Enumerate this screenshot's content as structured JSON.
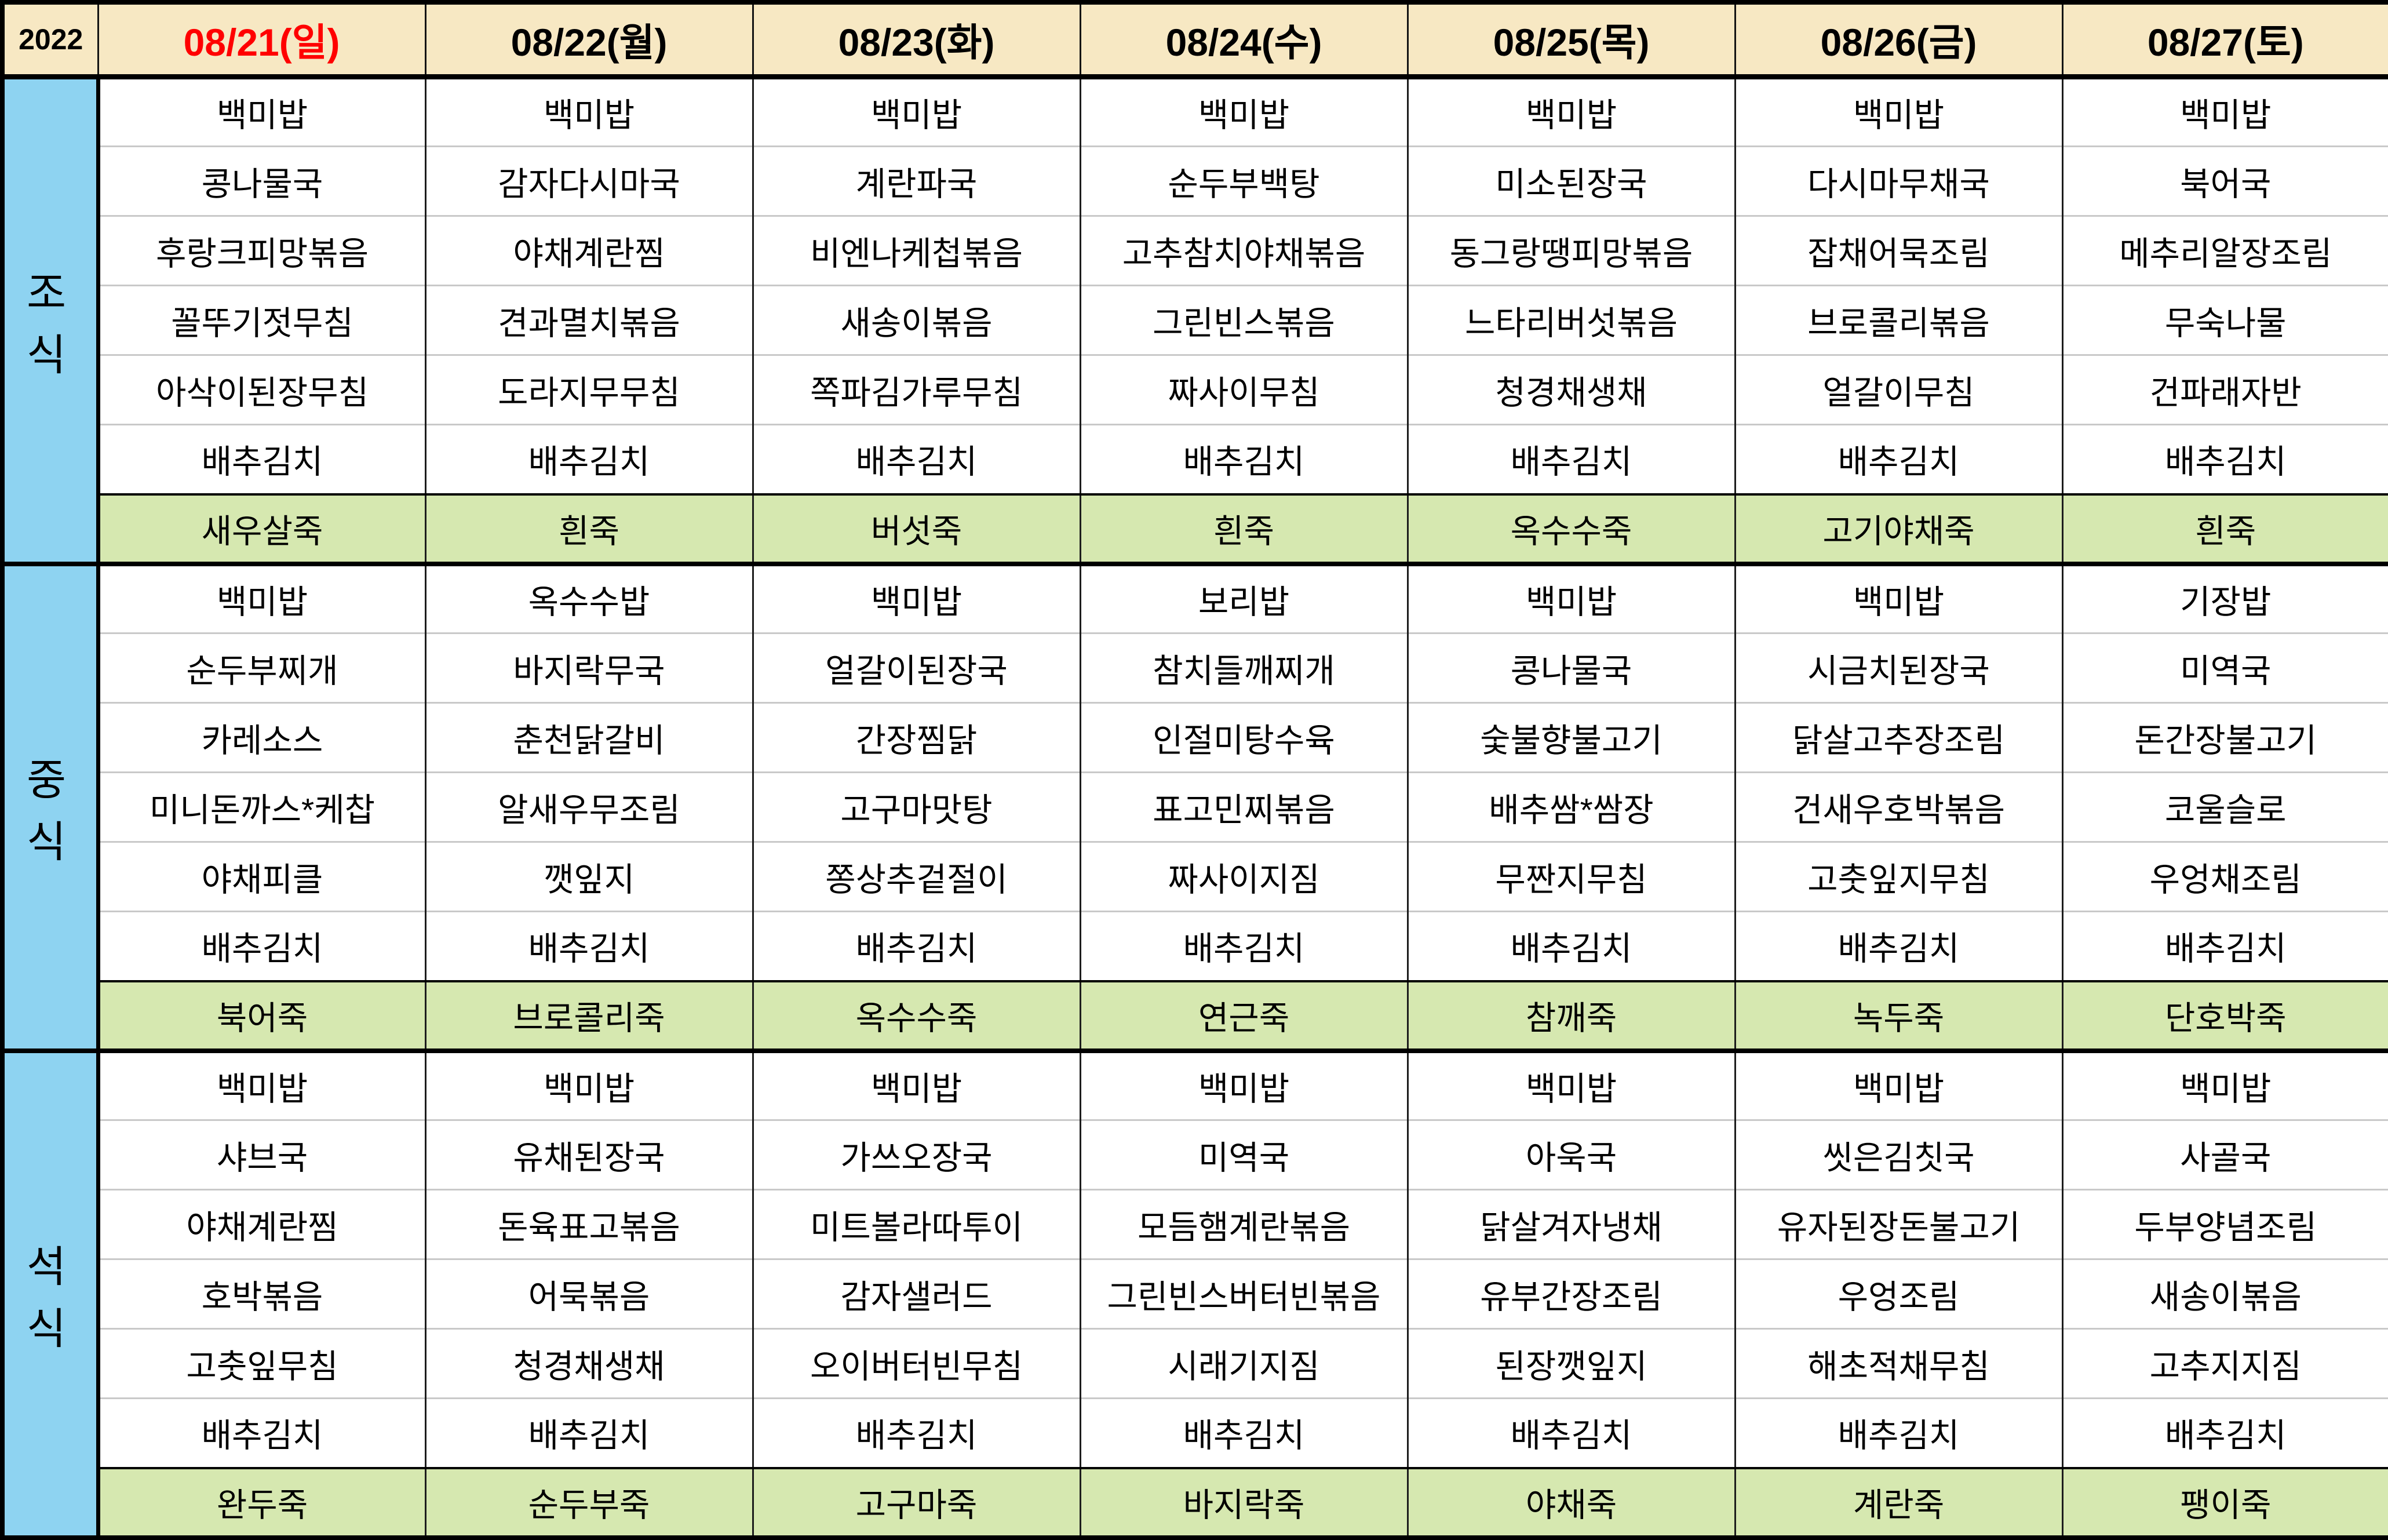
{
  "year": "2022",
  "colors": {
    "header_bg": "#F7E8C3",
    "meal_bg": "#8ED3F1",
    "porridge_bg": "#D6E8B0",
    "holiday_text": "#FF0000",
    "grid_light": "#C9C9C9"
  },
  "header": {
    "days": [
      {
        "label": "08/21(일)",
        "red": true
      },
      {
        "label": "08/22(월)",
        "red": false
      },
      {
        "label": "08/23(화)",
        "red": false
      },
      {
        "label": "08/24(수)",
        "red": false
      },
      {
        "label": "08/25(목)",
        "red": false
      },
      {
        "label": "08/26(금)",
        "red": false
      },
      {
        "label": "08/27(토)",
        "red": false
      }
    ]
  },
  "sections": [
    {
      "label": "조식",
      "menus": [
        [
          "백미밥",
          "콩나물국",
          "후랑크피망볶음",
          "꼴뚜기젓무침",
          "아삭이된장무침",
          "배추김치"
        ],
        [
          "백미밥",
          "감자다시마국",
          "야채계란찜",
          "견과멸치볶음",
          "도라지무무침",
          "배추김치"
        ],
        [
          "백미밥",
          "계란파국",
          "비엔나케첩볶음",
          "새송이볶음",
          "쪽파김가루무침",
          "배추김치"
        ],
        [
          "백미밥",
          "순두부백탕",
          "고추참치야채볶음",
          "그린빈스볶음",
          "짜사이무침",
          "배추김치"
        ],
        [
          "백미밥",
          "미소된장국",
          "동그랑땡피망볶음",
          "느타리버섯볶음",
          "청경채생채",
          "배추김치"
        ],
        [
          "백미밥",
          "다시마무채국",
          "잡채어묵조림",
          "브로콜리볶음",
          "얼갈이무침",
          "배추김치"
        ],
        [
          "백미밥",
          "북어국",
          "메추리알장조림",
          "무숙나물",
          "건파래자반",
          "배추김치"
        ]
      ],
      "porridge": [
        "새우살죽",
        "흰죽",
        "버섯죽",
        "흰죽",
        "옥수수죽",
        "고기야채죽",
        "흰죽"
      ]
    },
    {
      "label": "중식",
      "menus": [
        [
          "백미밥",
          "순두부찌개",
          "카레소스",
          "미니돈까스*케찹",
          "야채피클",
          "배추김치"
        ],
        [
          "옥수수밥",
          "바지락무국",
          "춘천닭갈비",
          "알새우무조림",
          "깻잎지",
          "배추김치"
        ],
        [
          "백미밥",
          "얼갈이된장국",
          "간장찜닭",
          "고구마맛탕",
          "쫑상추겉절이",
          "배추김치"
        ],
        [
          "보리밥",
          "참치들깨찌개",
          "인절미탕수육",
          "표고민찌볶음",
          "짜사이지짐",
          "배추김치"
        ],
        [
          "백미밥",
          "콩나물국",
          "숯불향불고기",
          "배추쌈*쌈장",
          "무짠지무침",
          "배추김치"
        ],
        [
          "백미밥",
          "시금치된장국",
          "닭살고추장조림",
          "건새우호박볶음",
          "고춧잎지무침",
          "배추김치"
        ],
        [
          "기장밥",
          "미역국",
          "돈간장불고기",
          "코울슬로",
          "우엉채조림",
          "배추김치"
        ]
      ],
      "porridge": [
        "북어죽",
        "브로콜리죽",
        "옥수수죽",
        "연근죽",
        "참깨죽",
        "녹두죽",
        "단호박죽"
      ]
    },
    {
      "label": "석식",
      "menus": [
        [
          "백미밥",
          "샤브국",
          "야채계란찜",
          "호박볶음",
          "고춧잎무침",
          "배추김치"
        ],
        [
          "백미밥",
          "유채된장국",
          "돈육표고볶음",
          "어묵볶음",
          "청경채생채",
          "배추김치"
        ],
        [
          "백미밥",
          "가쓰오장국",
          "미트볼라따투이",
          "감자샐러드",
          "오이버터빈무침",
          "배추김치"
        ],
        [
          "백미밥",
          "미역국",
          "모듬햄계란볶음",
          "그린빈스버터빈볶음",
          "시래기지짐",
          "배추김치"
        ],
        [
          "백미밥",
          "아욱국",
          "닭살겨자냉채",
          "유부간장조림",
          "된장깻잎지",
          "배추김치"
        ],
        [
          "백미밥",
          "씻은김칫국",
          "유자된장돈불고기",
          "우엉조림",
          "해초적채무침",
          "배추김치"
        ],
        [
          "백미밥",
          "사골국",
          "두부양념조림",
          "새송이볶음",
          "고추지지짐",
          "배추김치"
        ]
      ],
      "porridge": [
        "완두죽",
        "순두부죽",
        "고구마죽",
        "바지락죽",
        "야채죽",
        "계란죽",
        "팽이죽"
      ]
    }
  ]
}
